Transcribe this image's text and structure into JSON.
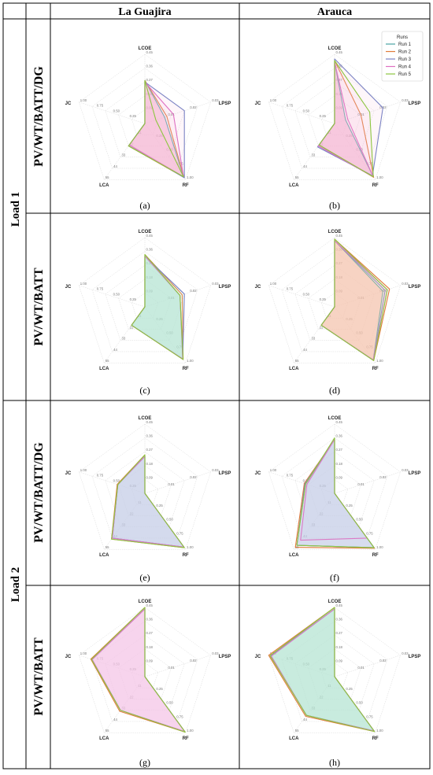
{
  "columns": [
    "La Guajira",
    "Arauca"
  ],
  "load_labels": [
    "Load 1",
    "Load 2"
  ],
  "system_labels": [
    "PV/WT/BATT/DG",
    "PV/WT/BATT",
    "PV/WT/BATT/DG",
    "PV/WT/BATT"
  ],
  "legend": {
    "title": "Runs",
    "items": [
      {
        "name": "Run 1",
        "color": "#4aa3a2"
      },
      {
        "name": "Run 2",
        "color": "#e07b39"
      },
      {
        "name": "Run 3",
        "color": "#7b83c4"
      },
      {
        "name": "Run 4",
        "color": "#de6fc2"
      },
      {
        "name": "Run 5",
        "color": "#8cc63f"
      }
    ]
  },
  "axes": [
    {
      "name": "LCOE",
      "ticks": [
        "0.09",
        "0.18",
        "0.27",
        "0.36",
        "0.45"
      ],
      "max": 0.45
    },
    {
      "name": "LPSP",
      "ticks": [
        "0.01",
        "0.02",
        "0.03"
      ],
      "max": 0.03
    },
    {
      "name": "RF",
      "ticks": [
        "0.25",
        "0.50",
        "0.75",
        "1.00"
      ],
      "max": 1.0
    },
    {
      "name": "LCA",
      "ticks": [
        "11",
        "22",
        "33",
        "44",
        "55"
      ],
      "max": 55
    },
    {
      "name": "JC",
      "ticks": [
        "0.25",
        "0.50",
        "0.75",
        "1.00"
      ],
      "max": 1.0
    }
  ],
  "chart_data": [
    {
      "type": "radar",
      "caption": "(a)",
      "column": "La Guajira",
      "load": "Load 1",
      "system": "PV/WT/BATT/DG",
      "fill": "#f7b6d2",
      "series": [
        {
          "name": "Run 1",
          "values": [
            0.28,
            0.009,
            0.95,
            22,
            0
          ]
        },
        {
          "name": "Run 2",
          "values": [
            0.28,
            0.01,
            0.96,
            22,
            0
          ]
        },
        {
          "name": "Run 3",
          "values": [
            0.27,
            0.018,
            0.97,
            21,
            0
          ]
        },
        {
          "name": "Run 4",
          "values": [
            0.27,
            0.013,
            0.95,
            21,
            0
          ]
        },
        {
          "name": "Run 5",
          "values": [
            0.28,
            0.005,
            0.95,
            22,
            0
          ]
        }
      ]
    },
    {
      "type": "radar",
      "caption": "(b)",
      "column": "Arauca",
      "load": "Load 1",
      "system": "PV/WT/BATT/DG",
      "fill": "#f7b6d2",
      "series": [
        {
          "name": "Run 1",
          "values": [
            0.4,
            0.005,
            0.95,
            22,
            0
          ]
        },
        {
          "name": "Run 2",
          "values": [
            0.41,
            0.012,
            0.96,
            21,
            0
          ]
        },
        {
          "name": "Run 3",
          "values": [
            0.42,
            0.022,
            0.93,
            23,
            0
          ]
        },
        {
          "name": "Run 4",
          "values": [
            0.4,
            0.006,
            0.95,
            22,
            0
          ]
        },
        {
          "name": "Run 5",
          "values": [
            0.41,
            0.016,
            0.95,
            21,
            0
          ]
        }
      ]
    },
    {
      "type": "radar",
      "caption": "(c)",
      "column": "La Guajira",
      "load": "Load 1",
      "system": "PV/WT/BATT",
      "fill": "#b8e4d2",
      "series": [
        {
          "name": "Run 1",
          "values": [
            0.33,
            0.016,
            0.93,
            18,
            0
          ]
        },
        {
          "name": "Run 2",
          "values": [
            0.34,
            0.017,
            0.94,
            18,
            0
          ]
        },
        {
          "name": "Run 3",
          "values": [
            0.33,
            0.018,
            0.93,
            18,
            0
          ]
        },
        {
          "name": "Run 4",
          "values": [
            0.33,
            0.016,
            0.93,
            18,
            0
          ]
        },
        {
          "name": "Run 5",
          "values": [
            0.34,
            0.016,
            0.94,
            18,
            0
          ]
        }
      ]
    },
    {
      "type": "radar",
      "caption": "(d)",
      "column": "Arauca",
      "load": "Load 1",
      "system": "PV/WT/BATT",
      "fill": "#f7c5b0",
      "series": [
        {
          "name": "Run 1",
          "values": [
            0.43,
            0.022,
            0.95,
            18,
            0
          ]
        },
        {
          "name": "Run 2",
          "values": [
            0.44,
            0.025,
            0.96,
            18,
            0
          ]
        },
        {
          "name": "Run 3",
          "values": [
            0.43,
            0.023,
            0.95,
            18,
            0
          ]
        },
        {
          "name": "Run 4",
          "values": [
            0.43,
            0.024,
            0.95,
            18,
            0
          ]
        },
        {
          "name": "Run 5",
          "values": [
            0.44,
            0.024,
            0.96,
            18,
            0
          ]
        }
      ]
    },
    {
      "type": "radar",
      "caption": "(e)",
      "column": "La Guajira",
      "load": "Load 2",
      "system": "PV/WT/BATT/DG",
      "fill": "#c9d0ea",
      "series": [
        {
          "name": "Run 1",
          "values": [
            0.24,
            0,
            0.96,
            44,
            0.41
          ]
        },
        {
          "name": "Run 2",
          "values": [
            0.25,
            0,
            0.97,
            45,
            0.42
          ]
        },
        {
          "name": "Run 3",
          "values": [
            0.24,
            0,
            0.96,
            44,
            0.41
          ]
        },
        {
          "name": "Run 4",
          "values": [
            0.24,
            0,
            0.96,
            44,
            0.41
          ]
        },
        {
          "name": "Run 5",
          "values": [
            0.25,
            0,
            0.97,
            45,
            0.41
          ]
        }
      ]
    },
    {
      "type": "radar",
      "caption": "(f)",
      "column": "Arauca",
      "load": "Load 2",
      "system": "PV/WT/BATT/DG",
      "fill": "#c9d0ea",
      "series": [
        {
          "name": "Run 1",
          "values": [
            0.35,
            0,
            0.97,
            51,
            0.44
          ]
        },
        {
          "name": "Run 2",
          "values": [
            0.35,
            0,
            0.98,
            53,
            0.46
          ]
        },
        {
          "name": "Run 3",
          "values": [
            0.35,
            0,
            0.97,
            51,
            0.45
          ]
        },
        {
          "name": "Run 4",
          "values": [
            0.35,
            0,
            0.8,
            46,
            0.42
          ]
        },
        {
          "name": "Run 5",
          "values": [
            0.36,
            0,
            0.97,
            51,
            0.44
          ]
        }
      ]
    },
    {
      "type": "radar",
      "caption": "(g)",
      "column": "La Guajira",
      "load": "Load 2",
      "system": "PV/WT/BATT",
      "fill": "#f4c7ea",
      "series": [
        {
          "name": "Run 1",
          "values": [
            0.44,
            0,
            0.98,
            33,
            0.8
          ]
        },
        {
          "name": "Run 2",
          "values": [
            0.45,
            0,
            0.99,
            34,
            0.82
          ]
        },
        {
          "name": "Run 3",
          "values": [
            0.44,
            0,
            0.98,
            33,
            0.8
          ]
        },
        {
          "name": "Run 4",
          "values": [
            0.44,
            0,
            0.98,
            33,
            0.8
          ]
        },
        {
          "name": "Run 5",
          "values": [
            0.45,
            0,
            0.99,
            33,
            0.81
          ]
        }
      ]
    },
    {
      "type": "radar",
      "caption": "(h)",
      "column": "Arauca",
      "load": "Load 2",
      "system": "PV/WT/BATT",
      "fill": "#b8e4d2",
      "series": [
        {
          "name": "Run 1",
          "values": [
            0.44,
            0,
            0.97,
            38,
            0.97
          ]
        },
        {
          "name": "Run 2",
          "values": [
            0.45,
            0,
            0.98,
            39,
            1.0
          ]
        },
        {
          "name": "Run 3",
          "values": [
            0.44,
            0,
            0.97,
            38,
            0.97
          ]
        },
        {
          "name": "Run 4",
          "values": [
            0.44,
            0,
            0.97,
            38,
            0.96
          ]
        },
        {
          "name": "Run 5",
          "values": [
            0.45,
            0,
            0.98,
            38,
            0.98
          ]
        }
      ]
    }
  ]
}
